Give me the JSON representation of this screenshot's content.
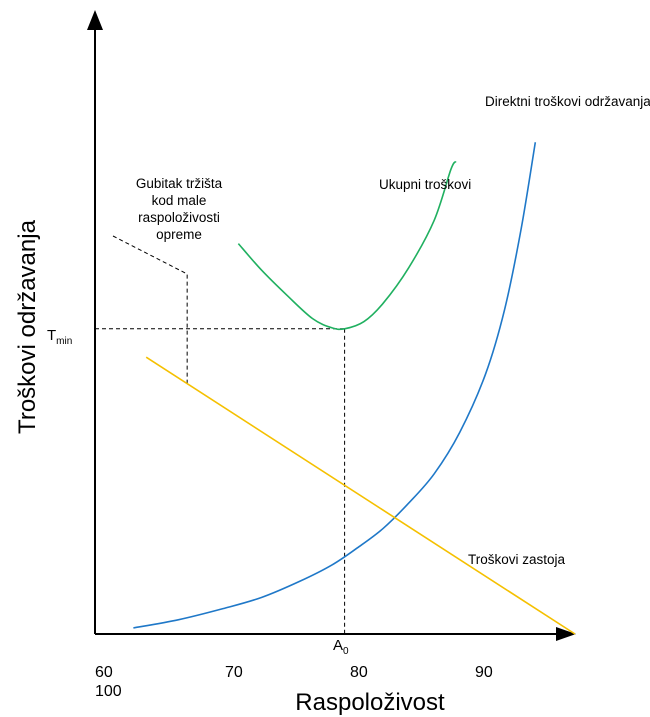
{
  "chart_data": {
    "type": "line",
    "title": "",
    "xlabel": "Raspoloživost",
    "ylabel": "Troškovi održavanja",
    "x_ticks": [
      "60",
      "70",
      "80",
      "90",
      "100"
    ],
    "y_marker": {
      "text": "T",
      "sub": "min"
    },
    "x_marker": {
      "text": "A",
      "sub": "0"
    },
    "annotation_lines": [
      "Gubitak tržišta",
      "kod male",
      "raspoloživosti",
      "opreme"
    ],
    "series": [
      {
        "name": "Direktni troškovi održavanja",
        "color": "#1f78c8",
        "x": [
          63,
          66.5,
          70,
          73,
          76,
          78.5,
          80.5,
          82.5,
          84.5,
          86.5,
          88.5,
          90.5,
          92,
          93.3,
          94.4
        ],
        "y": [
          0.6,
          1.4,
          2.5,
          3.6,
          5.2,
          6.8,
          8.5,
          10.4,
          12.9,
          15.8,
          19.9,
          25.6,
          32,
          40,
          48.5
        ]
      },
      {
        "name": "Troškovi zastoja",
        "color": "#f5c000",
        "x": [
          64,
          97.5
        ],
        "y": [
          27.3,
          0
        ]
      },
      {
        "name": "Ukupni troškovi",
        "color": "#20b060",
        "x": [
          71.2,
          73,
          75,
          77,
          78.5,
          79.5,
          81,
          82.5,
          84.5,
          86.5,
          87.8,
          88.2
        ],
        "y": [
          38.5,
          35.9,
          33.4,
          31.1,
          30.2,
          30.1,
          30.8,
          32.6,
          36.1,
          40.8,
          45.8,
          46.6
        ]
      }
    ],
    "xlim": [
      60,
      98
    ],
    "ylim": [
      0,
      62
    ],
    "grid": false,
    "legend": "none"
  }
}
